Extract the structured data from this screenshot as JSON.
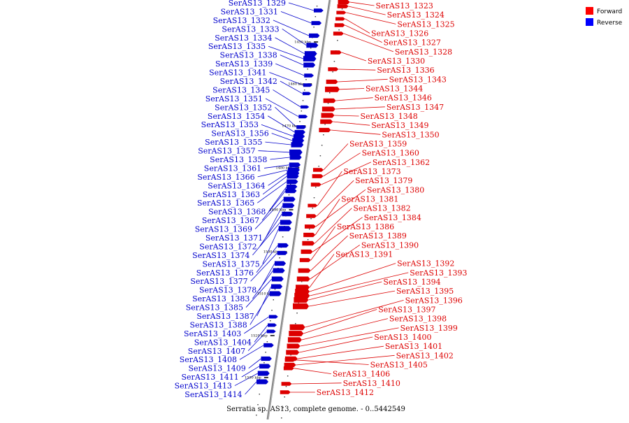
{
  "caption": "Serratia sp. AS13, complete genome. - 0..5442549",
  "legend": [
    {
      "label": "Forward",
      "color": "#ff0000"
    },
    {
      "label": "Reverse",
      "color": "#0000ff"
    }
  ],
  "colors": {
    "forward": "#dd0000",
    "reverse": "#0000cc",
    "backbone": "#888888"
  },
  "backbone": {
    "kbp_from": 1440,
    "kbp_to": 1540
  },
  "kbp_marks": [
    {
      "text": "1450 kbp",
      "kbp": 1450
    },
    {
      "text": "1460 kbp",
      "kbp": 1460
    },
    {
      "text": "1470 kbp",
      "kbp": 1470
    },
    {
      "text": "1480 kbp",
      "kbp": 1480
    },
    {
      "text": "1490 kbp",
      "kbp": 1490
    },
    {
      "text": "1500 kbp",
      "kbp": 1500
    },
    {
      "text": "1510 kbp",
      "kbp": 1510
    },
    {
      "text": "1520 kbp",
      "kbp": 1520
    },
    {
      "text": "1530 kbp",
      "kbp": 1530
    }
  ],
  "reverse_genes": [
    {
      "name": "SerAS13_1329",
      "kbp": 1442.5,
      "size": 0.6
    },
    {
      "name": "SerAS13_1331",
      "kbp": 1445.5,
      "size": 0.7
    },
    {
      "name": "SerAS13_1332",
      "kbp": 1448.5,
      "size": 0.8
    },
    {
      "name": "SerAS13_1333",
      "kbp": 1450.8,
      "size": 1.0
    },
    {
      "name": "SerAS13_1334",
      "kbp": 1452.8,
      "size": 1.1
    },
    {
      "name": "SerAS13_1335",
      "kbp": 1454.0,
      "size": 1.2
    },
    {
      "name": "SerAS13_1338",
      "kbp": 1455.5,
      "size": 1.0
    },
    {
      "name": "SerAS13_1339",
      "kbp": 1458.0,
      "size": 0.6
    },
    {
      "name": "SerAS13_1341",
      "kbp": 1460.3,
      "size": 0.5
    },
    {
      "name": "SerAS13_1342",
      "kbp": 1462.3,
      "size": 0.4
    },
    {
      "name": "SerAS13_1345",
      "kbp": 1465.5,
      "size": 0.4
    },
    {
      "name": "SerAS13_1351",
      "kbp": 1467.8,
      "size": 0.5
    },
    {
      "name": "SerAS13_1352",
      "kbp": 1470.3,
      "size": 0.6
    },
    {
      "name": "SerAS13_1354",
      "kbp": 1471.5,
      "size": 0.8
    },
    {
      "name": "SerAS13_1353",
      "kbp": 1472.5,
      "size": 0.9
    },
    {
      "name": "SerAS13_1356",
      "kbp": 1473.5,
      "size": 1.0
    },
    {
      "name": "SerAS13_1355",
      "kbp": 1474.5,
      "size": 1.1
    },
    {
      "name": "SerAS13_1357",
      "kbp": 1476.3,
      "size": 1.2
    },
    {
      "name": "SerAS13_1358",
      "kbp": 1477.5,
      "size": 1.0
    },
    {
      "name": "SerAS13_1361",
      "kbp": 1479.3,
      "size": 0.9
    },
    {
      "name": "SerAS13_1366",
      "kbp": 1480.5,
      "size": 1.0
    },
    {
      "name": "SerAS13_1364",
      "kbp": 1481.3,
      "size": 1.1
    },
    {
      "name": "SerAS13_1363",
      "kbp": 1482.0,
      "size": 1.0
    },
    {
      "name": "SerAS13_1365",
      "kbp": 1483.3,
      "size": 0.9
    },
    {
      "name": "SerAS13_1368",
      "kbp": 1484.5,
      "size": 0.8
    },
    {
      "name": "SerAS13_1367",
      "kbp": 1485.5,
      "size": 0.9
    },
    {
      "name": "SerAS13_1369",
      "kbp": 1487.5,
      "size": 1.0
    },
    {
      "name": "SerAS13_1371",
      "kbp": 1489.0,
      "size": 1.0
    },
    {
      "name": "SerAS13_1372",
      "kbp": 1491.0,
      "size": 0.9
    },
    {
      "name": "SerAS13_1374",
      "kbp": 1493.0,
      "size": 1.0
    },
    {
      "name": "SerAS13_1375",
      "kbp": 1494.5,
      "size": 1.1
    },
    {
      "name": "SerAS13_1376",
      "kbp": 1498.5,
      "size": 0.8
    },
    {
      "name": "SerAS13_1377",
      "kbp": 1500.3,
      "size": 0.7
    },
    {
      "name": "SerAS13_1378",
      "kbp": 1502.8,
      "size": 0.9
    },
    {
      "name": "SerAS13_1383",
      "kbp": 1504.5,
      "size": 1.0
    },
    {
      "name": "SerAS13_1385",
      "kbp": 1506.5,
      "size": 1.0
    },
    {
      "name": "SerAS13_1387",
      "kbp": 1508.3,
      "size": 0.9
    },
    {
      "name": "SerAS13_1388",
      "kbp": 1510.0,
      "size": 1.0
    },
    {
      "name": "SerAS13_1403",
      "kbp": 1515.5,
      "size": 0.5
    },
    {
      "name": "SerAS13_1404",
      "kbp": 1517.5,
      "size": 0.5
    },
    {
      "name": "SerAS13_1407",
      "kbp": 1519.0,
      "size": 0.5
    },
    {
      "name": "SerAS13_1408",
      "kbp": 1522.3,
      "size": 0.7
    },
    {
      "name": "SerAS13_1409",
      "kbp": 1525.5,
      "size": 0.8
    },
    {
      "name": "SerAS13_1411",
      "kbp": 1527.3,
      "size": 0.9
    },
    {
      "name": "SerAS13_1413",
      "kbp": 1529.0,
      "size": 1.0
    },
    {
      "name": "SerAS13_1414",
      "kbp": 1531.0,
      "size": 1.0
    }
  ],
  "forward_genes": [
    {
      "name": "SerAS13_1323",
      "kbp": 1440.5,
      "size": 0.8
    },
    {
      "name": "SerAS13_1324",
      "kbp": 1441.5,
      "size": 0.7
    },
    {
      "name": "SerAS13_1325",
      "kbp": 1443.0,
      "size": 0.5
    },
    {
      "name": "SerAS13_1326",
      "kbp": 1444.5,
      "size": 0.5
    },
    {
      "name": "SerAS13_1327",
      "kbp": 1446.0,
      "size": 0.6
    },
    {
      "name": "SerAS13_1328",
      "kbp": 1448.0,
      "size": 0.6
    },
    {
      "name": "SerAS13_1330",
      "kbp": 1452.5,
      "size": 0.7
    },
    {
      "name": "SerAS13_1336",
      "kbp": 1456.5,
      "size": 0.6
    },
    {
      "name": "SerAS13_1343",
      "kbp": 1459.5,
      "size": 0.8
    },
    {
      "name": "SerAS13_1344",
      "kbp": 1461.3,
      "size": 1.2
    },
    {
      "name": "SerAS13_1346",
      "kbp": 1464.0,
      "size": 0.9
    },
    {
      "name": "SerAS13_1347",
      "kbp": 1466.0,
      "size": 1.0
    },
    {
      "name": "SerAS13_1348",
      "kbp": 1467.5,
      "size": 1.0
    },
    {
      "name": "SerAS13_1349",
      "kbp": 1469.0,
      "size": 0.9
    },
    {
      "name": "SerAS13_1350",
      "kbp": 1471.0,
      "size": 0.8
    },
    {
      "name": "SerAS13_1359",
      "kbp": 1480.5,
      "size": 0.6
    },
    {
      "name": "SerAS13_1360",
      "kbp": 1482.0,
      "size": 0.7
    },
    {
      "name": "SerAS13_1362",
      "kbp": 1484.0,
      "size": 0.6
    },
    {
      "name": "SerAS13_1373",
      "kbp": 1489.0,
      "size": 0.5
    },
    {
      "name": "SerAS13_1379",
      "kbp": 1491.5,
      "size": 0.6
    },
    {
      "name": "SerAS13_1380",
      "kbp": 1494.0,
      "size": 0.7
    },
    {
      "name": "SerAS13_1381",
      "kbp": 1496.0,
      "size": 0.8
    },
    {
      "name": "SerAS13_1382",
      "kbp": 1498.0,
      "size": 0.9
    },
    {
      "name": "SerAS13_1384",
      "kbp": 1500.0,
      "size": 0.8
    },
    {
      "name": "SerAS13_1386",
      "kbp": 1502.0,
      "size": 0.7
    },
    {
      "name": "SerAS13_1389",
      "kbp": 1504.5,
      "size": 0.9
    },
    {
      "name": "SerAS13_1390",
      "kbp": 1506.5,
      "size": 1.0
    },
    {
      "name": "SerAS13_1391",
      "kbp": 1508.5,
      "size": 1.1
    },
    {
      "name": "SerAS13_1392",
      "kbp": 1509.5,
      "size": 1.2
    },
    {
      "name": "SerAS13_1393",
      "kbp": 1510.5,
      "size": 1.3
    },
    {
      "name": "SerAS13_1394",
      "kbp": 1511.5,
      "size": 1.2
    },
    {
      "name": "SerAS13_1395",
      "kbp": 1513.0,
      "size": 1.4
    },
    {
      "name": "SerAS13_1396",
      "kbp": 1518.0,
      "size": 1.3
    },
    {
      "name": "SerAS13_1397",
      "kbp": 1519.5,
      "size": 1.2
    },
    {
      "name": "SerAS13_1398",
      "kbp": 1521.0,
      "size": 1.1
    },
    {
      "name": "SerAS13_1399",
      "kbp": 1522.5,
      "size": 1.0
    },
    {
      "name": "SerAS13_1400",
      "kbp": 1524.0,
      "size": 1.0
    },
    {
      "name": "SerAS13_1401",
      "kbp": 1525.5,
      "size": 0.9
    },
    {
      "name": "SerAS13_1402",
      "kbp": 1527.0,
      "size": 0.8
    },
    {
      "name": "SerAS13_1405",
      "kbp": 1525.8,
      "size": 0.6
    },
    {
      "name": "SerAS13_1406",
      "kbp": 1527.8,
      "size": 0.6
    },
    {
      "name": "SerAS13_1410",
      "kbp": 1531.5,
      "size": 0.6
    },
    {
      "name": "SerAS13_1412",
      "kbp": 1533.5,
      "size": 0.6
    }
  ]
}
